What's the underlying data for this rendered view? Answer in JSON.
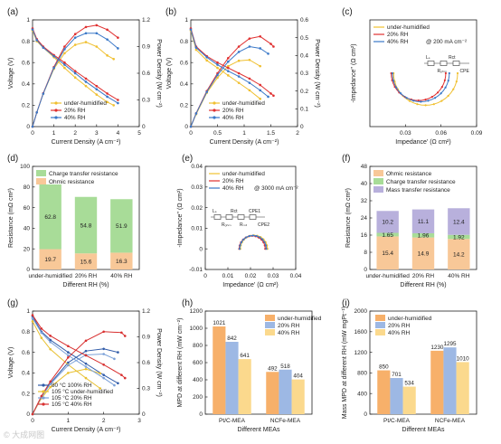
{
  "colors": {
    "under": "#f0c030",
    "rh20": "#e03030",
    "rh40": "#3a78c8",
    "ohmic": "#f8c898",
    "charge": "#a8dc98",
    "mass": "#b8b0dc",
    "pt_under": "#f7b06a",
    "pt_20": "#9db8e4",
    "pt_40": "#fbd98d",
    "g1": "#2f5aa8",
    "g2": "#e8c030",
    "g3": "#7aa0d8",
    "g4": "#d83030"
  },
  "watermark": "© 大成网图",
  "chart_data": [
    {
      "panel": "(a)",
      "type": "line",
      "xlabel": "Current Density (A cm⁻²)",
      "ylabel": "Voltage (V)",
      "y2label": "Power Density (W cm⁻²)",
      "xlim": [
        0,
        5
      ],
      "ylim": [
        0,
        1.0
      ],
      "y2lim": [
        0,
        1.2
      ],
      "xticks": [
        0,
        1,
        2,
        3,
        4,
        5
      ],
      "yticks": [
        0,
        0.2,
        0.4,
        0.6,
        0.8,
        1.0
      ],
      "y2ticks": [
        0,
        0.3,
        0.6,
        0.9,
        1.2
      ],
      "legend": [
        "under-humidified",
        "20% RH",
        "40% RH"
      ],
      "legend_position": "bottom-right",
      "series": [
        {
          "name": "under-humidified",
          "color_key": "under",
          "x": [
            0,
            0.2,
            0.5,
            1,
            1.5,
            2,
            2.5,
            3,
            3.5,
            3.8
          ],
          "v": [
            0.9,
            0.8,
            0.74,
            0.65,
            0.55,
            0.46,
            0.38,
            0.3,
            0.23,
            0.2
          ],
          "p": [
            0,
            0.16,
            0.37,
            0.65,
            0.825,
            0.92,
            0.95,
            0.9,
            0.8,
            0.76
          ]
        },
        {
          "name": "20% RH",
          "color_key": "rh20",
          "x": [
            0,
            0.2,
            0.5,
            1,
            1.5,
            2,
            2.5,
            3,
            3.5,
            4
          ],
          "v": [
            0.92,
            0.82,
            0.75,
            0.67,
            0.6,
            0.52,
            0.45,
            0.38,
            0.31,
            0.25
          ],
          "p": [
            0,
            0.16,
            0.375,
            0.67,
            0.9,
            1.04,
            1.12,
            1.14,
            1.09,
            1.0
          ]
        },
        {
          "name": "40% RH",
          "color_key": "rh40",
          "x": [
            0,
            0.2,
            0.5,
            1,
            1.5,
            2,
            2.5,
            3,
            3.5,
            4
          ],
          "v": [
            0.91,
            0.81,
            0.74,
            0.66,
            0.58,
            0.5,
            0.42,
            0.35,
            0.28,
            0.22
          ],
          "p": [
            0,
            0.16,
            0.37,
            0.66,
            0.87,
            1.0,
            1.05,
            1.05,
            0.98,
            0.88
          ]
        }
      ]
    },
    {
      "panel": "(b)",
      "type": "line",
      "xlabel": "Current Density (A cm⁻²)",
      "ylabel": "Voltage (V)",
      "y2label": "Power Density (W cm⁻²)",
      "xlim": [
        0,
        2.0
      ],
      "ylim": [
        0,
        1.0
      ],
      "y2lim": [
        0,
        0.6
      ],
      "xticks": [
        0,
        0.5,
        1.0,
        1.5,
        2.0
      ],
      "yticks": [
        0,
        0.2,
        0.4,
        0.6,
        0.8,
        1.0
      ],
      "y2ticks": [
        0,
        0.1,
        0.2,
        0.3,
        0.4,
        0.5,
        0.6
      ],
      "legend": [
        "under-humidified",
        "20% RH",
        "40% RH"
      ],
      "legend_position": "bottom-right",
      "series": [
        {
          "name": "under-humidified",
          "color_key": "under",
          "x": [
            0,
            0.1,
            0.3,
            0.5,
            0.7,
            0.9,
            1.1,
            1.3
          ],
          "v": [
            0.9,
            0.72,
            0.62,
            0.55,
            0.48,
            0.41,
            0.34,
            0.26
          ],
          "p": [
            0,
            0.07,
            0.19,
            0.275,
            0.34,
            0.37,
            0.375,
            0.34
          ]
        },
        {
          "name": "20% RH",
          "color_key": "rh20",
          "x": [
            0,
            0.1,
            0.3,
            0.5,
            0.7,
            0.9,
            1.1,
            1.3,
            1.5,
            1.55
          ],
          "v": [
            0.92,
            0.75,
            0.66,
            0.6,
            0.55,
            0.5,
            0.45,
            0.39,
            0.31,
            0.29
          ],
          "p": [
            0,
            0.075,
            0.2,
            0.3,
            0.385,
            0.45,
            0.495,
            0.507,
            0.465,
            0.45
          ]
        },
        {
          "name": "40% RH",
          "color_key": "rh40",
          "x": [
            0,
            0.1,
            0.3,
            0.5,
            0.7,
            0.9,
            1.1,
            1.3,
            1.45
          ],
          "v": [
            0.91,
            0.74,
            0.65,
            0.58,
            0.52,
            0.47,
            0.41,
            0.34,
            0.28
          ],
          "p": [
            0,
            0.074,
            0.195,
            0.29,
            0.365,
            0.42,
            0.45,
            0.44,
            0.41
          ]
        }
      ]
    },
    {
      "panel": "(c)",
      "type": "scatter",
      "xlabel": "Impedance' (Ω cm²)",
      "ylabel": "-Impedance'' (Ω cm²)",
      "xlim": [
        0,
        0.09
      ],
      "ylim": [
        -0.06,
        0.06
      ],
      "xticks": [
        0.03,
        0.06,
        0.09
      ],
      "yticks": [],
      "annotation": "@ 200 mA cm⁻²",
      "circuit_labels": [
        "Lₛ",
        "Rₒₕₘ",
        "Rct",
        "CPE"
      ],
      "legend": [
        "under-humidified",
        "20% RH",
        "40% RH"
      ],
      "legend_position": "top-left",
      "series": [
        {
          "name": "under-humidified",
          "color_key": "under",
          "start": 0.02,
          "end": 0.074
        },
        {
          "name": "20% RH",
          "color_key": "rh20",
          "start": 0.018,
          "end": 0.064
        },
        {
          "name": "40% RH",
          "color_key": "rh40",
          "start": 0.019,
          "end": 0.067
        }
      ]
    },
    {
      "panel": "(d)",
      "type": "bar",
      "xlabel": "Different RH (%)",
      "ylabel": "Resistance (mΩ cm²)",
      "ylim": [
        0,
        100
      ],
      "yticks": [
        0,
        20,
        40,
        60,
        80,
        100
      ],
      "categories": [
        "under-humidified",
        "20% RH",
        "40% RH"
      ],
      "legend": [
        "Charge transfer resistance",
        "Ohmic resistance"
      ],
      "legend_position": "top",
      "series": [
        {
          "name": "Ohmic resistance",
          "color_key": "ohmic",
          "values": [
            19.7,
            15.6,
            16.3
          ]
        },
        {
          "name": "Charge transfer resistance",
          "color_key": "charge",
          "values": [
            62.8,
            54.8,
            51.9
          ]
        }
      ]
    },
    {
      "panel": "(e)",
      "type": "scatter",
      "xlabel": "Impedance' (Ω cm²)",
      "ylabel": "-Impedance'' (Ω cm²)",
      "xlim": [
        0,
        0.04
      ],
      "ylim": [
        -0.01,
        0.04
      ],
      "xticks": [
        0,
        0.01,
        0.02,
        0.03,
        0.04
      ],
      "yticks": [
        -0.01,
        0,
        0.01,
        0.02,
        0.03,
        0.04
      ],
      "annotation": "@ 3000 mA cm⁻²",
      "circuit_labels": [
        "Lₛ",
        "Rₒₕₘ",
        "Rct",
        "Rₘₜ",
        "CPE1",
        "CPE2"
      ],
      "legend": [
        "under-humidified",
        "20% RH",
        "40% RH"
      ],
      "legend_position": "top-left",
      "series": [
        {
          "name": "under-humidified",
          "color_key": "under",
          "start": 0.0155,
          "end": 0.0275
        },
        {
          "name": "20% RH",
          "color_key": "rh20",
          "start": 0.015,
          "end": 0.0265
        },
        {
          "name": "40% RH",
          "color_key": "rh40",
          "start": 0.0152,
          "end": 0.027
        }
      ]
    },
    {
      "panel": "(f)",
      "type": "bar",
      "xlabel": "Different RH (%)",
      "ylabel": "Resistance (mΩ cm²)",
      "ylim": [
        0,
        48
      ],
      "yticks": [
        0,
        8,
        16,
        24,
        32,
        40,
        48
      ],
      "categories": [
        "under-humidified",
        "20% RH",
        "40% RH"
      ],
      "legend": [
        "Ohmic resistance",
        "Charge transfer resistance",
        "Mass transfer resistance"
      ],
      "legend_position": "top",
      "series": [
        {
          "name": "Ohmic resistance",
          "color_key": "ohmic",
          "values": [
            15.4,
            14.9,
            14.2
          ]
        },
        {
          "name": "Charge transfer resistance",
          "color_key": "charge",
          "values": [
            1.65,
            1.96,
            1.92
          ]
        },
        {
          "name": "Mass transfer resistance",
          "color_key": "mass",
          "values": [
            10.2,
            11.1,
            12.4
          ]
        }
      ]
    },
    {
      "panel": "(g)",
      "type": "line",
      "xlabel": "Current Density (A cm⁻²)",
      "ylabel": "Voltage (V)",
      "y2label": "Power Density (W cm⁻²)",
      "xlim": [
        0,
        3
      ],
      "ylim": [
        0,
        1.0
      ],
      "y2lim": [
        0,
        1.2
      ],
      "xticks": [
        0,
        1,
        2,
        3
      ],
      "yticks": [
        0,
        0.2,
        0.4,
        0.6,
        0.8,
        1.0
      ],
      "y2ticks": [
        0,
        0.3,
        0.6,
        0.9,
        1.2
      ],
      "legend": [
        "80 °C 100% RH",
        "105 °C under-humidified",
        "105 °C 20% RH",
        "105 °C 40% RH"
      ],
      "legend_position": "bottom-left",
      "series": [
        {
          "name": "80 °C 100% RH",
          "color_key": "g1",
          "x": [
            0,
            0.25,
            0.5,
            1,
            1.5,
            2,
            2.4
          ],
          "v": [
            0.95,
            0.8,
            0.72,
            0.6,
            0.49,
            0.38,
            0.3
          ],
          "p": [
            0,
            0.2,
            0.36,
            0.6,
            0.735,
            0.76,
            0.72
          ]
        },
        {
          "name": "105 °C under-humidified",
          "color_key": "g2",
          "x": [
            0,
            0.25,
            0.5,
            1,
            1.5,
            1.9
          ],
          "v": [
            0.9,
            0.74,
            0.63,
            0.48,
            0.35,
            0.25
          ],
          "p": [
            0,
            0.185,
            0.315,
            0.48,
            0.525,
            0.475
          ]
        },
        {
          "name": "105 °C 20% RH",
          "color_key": "g3",
          "x": [
            0,
            0.25,
            0.5,
            1,
            1.5,
            2,
            2.3
          ],
          "v": [
            0.93,
            0.79,
            0.7,
            0.57,
            0.46,
            0.35,
            0.28
          ],
          "p": [
            0,
            0.198,
            0.35,
            0.57,
            0.69,
            0.7,
            0.644
          ]
        },
        {
          "name": "105 °C 40% RH",
          "color_key": "g4",
          "x": [
            0,
            0.25,
            0.5,
            1,
            1.5,
            2,
            2.5,
            2.6
          ],
          "v": [
            0.96,
            0.83,
            0.76,
            0.66,
            0.57,
            0.48,
            0.38,
            0.35
          ],
          "p": [
            0,
            0.21,
            0.38,
            0.66,
            0.855,
            0.96,
            0.95,
            0.91
          ]
        }
      ]
    },
    {
      "panel": "(h)",
      "type": "bar",
      "xlabel": "Different MEAs",
      "ylabel": "MPD at different RH (mW cm⁻²)",
      "ylim": [
        0,
        1200
      ],
      "yticks": [
        0,
        200,
        400,
        600,
        800,
        1000,
        1200
      ],
      "categories": [
        "Pt/C-MEA",
        "NCFe-MEA"
      ],
      "legend": [
        "under-humidified",
        "20% RH",
        "40% RH"
      ],
      "legend_position": "top-right",
      "series": [
        {
          "name": "under-humidified",
          "color_key": "pt_under",
          "values": [
            1021,
            492
          ]
        },
        {
          "name": "20% RH",
          "color_key": "pt_20",
          "values": [
            842,
            518
          ]
        },
        {
          "name": "40% RH",
          "color_key": "pt_40",
          "values": [
            641,
            404
          ]
        }
      ]
    },
    {
      "panel": "(i)",
      "type": "bar",
      "xlabel": "Different MEAs",
      "ylabel": "Mass MPD at different RH (mW mgPt⁻¹)",
      "ylim": [
        0,
        2000
      ],
      "yticks": [
        0,
        400,
        800,
        1200,
        1600,
        2000
      ],
      "categories": [
        "Pt/C-MEA",
        "NCFe-MEA"
      ],
      "legend": [
        "under-humidified",
        "20% RH",
        "40% RH"
      ],
      "legend_position": "top-left",
      "series": [
        {
          "name": "under-humidified",
          "color_key": "pt_under",
          "values": [
            850,
            1230
          ]
        },
        {
          "name": "20% RH",
          "color_key": "pt_20",
          "values": [
            701,
            1295
          ]
        },
        {
          "name": "40% RH",
          "color_key": "pt_40",
          "values": [
            534,
            1010
          ]
        }
      ]
    }
  ]
}
